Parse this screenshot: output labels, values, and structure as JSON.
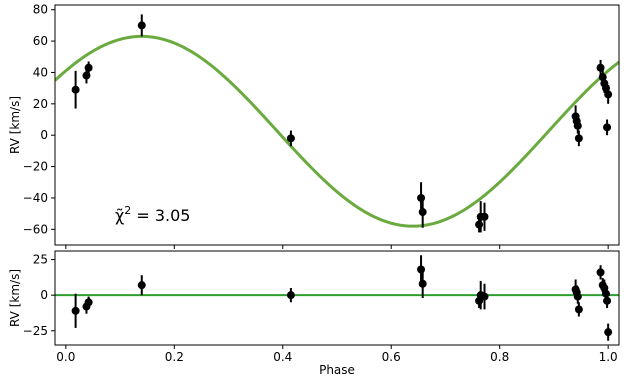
{
  "chart_data": [
    {
      "type": "scatter",
      "panel": "top",
      "ylabel": "RV [km/s]",
      "xlim": [
        -0.02,
        1.02
      ],
      "ylim": [
        -70,
        83
      ],
      "xticks": [
        0.0,
        0.2,
        0.4,
        0.6,
        0.8,
        1.0
      ],
      "yticks": [
        -60,
        -40,
        -20,
        0,
        20,
        40,
        60,
        80
      ],
      "ytick_labels": [
        "−60",
        "−40",
        "−20",
        "0",
        "20",
        "40",
        "60",
        "80"
      ],
      "model": {
        "color": "#6aaa3f",
        "offset": 2.5,
        "amplitude": 60.5,
        "peak_phase": 0.14,
        "period": 1.0
      },
      "annotation": {
        "base": "χ̃",
        "sup": "2",
        "value": " = 3.05"
      },
      "points": [
        {
          "x": 0.018,
          "y": 29,
          "err": 12
        },
        {
          "x": 0.038,
          "y": 38,
          "err": 5
        },
        {
          "x": 0.042,
          "y": 43,
          "err": 4
        },
        {
          "x": 0.14,
          "y": 70,
          "err": 7
        },
        {
          "x": 0.415,
          "y": -2,
          "err": 5
        },
        {
          "x": 0.655,
          "y": -40,
          "err": 10
        },
        {
          "x": 0.658,
          "y": -49,
          "err": 10
        },
        {
          "x": 0.762,
          "y": -57,
          "err": 5
        },
        {
          "x": 0.765,
          "y": -52,
          "err": 10
        },
        {
          "x": 0.772,
          "y": -52,
          "err": 9
        },
        {
          "x": 0.94,
          "y": 12,
          "err": 7
        },
        {
          "x": 0.942,
          "y": 9,
          "err": 5
        },
        {
          "x": 0.944,
          "y": 6,
          "err": 5
        },
        {
          "x": 0.946,
          "y": -2,
          "err": 5
        },
        {
          "x": 0.986,
          "y": 43,
          "err": 5
        },
        {
          "x": 0.99,
          "y": 37,
          "err": 5
        },
        {
          "x": 0.993,
          "y": 33,
          "err": 6
        },
        {
          "x": 0.996,
          "y": 30,
          "err": 5
        },
        {
          "x": 0.998,
          "y": 5,
          "err": 5
        },
        {
          "x": 1.0,
          "y": 26,
          "err": 6
        }
      ]
    },
    {
      "type": "scatter",
      "panel": "bottom",
      "xlabel": "Phase",
      "ylabel": "RV [km/s]",
      "xlim": [
        -0.02,
        1.02
      ],
      "ylim": [
        -35,
        31
      ],
      "xticks": [
        0.0,
        0.2,
        0.4,
        0.6,
        0.8,
        1.0
      ],
      "xtick_labels": [
        "0.0",
        "0.2",
        "0.4",
        "0.6",
        "0.8",
        "1.0"
      ],
      "yticks": [
        -25,
        0,
        25
      ],
      "ytick_labels": [
        "−25",
        "0",
        "25"
      ],
      "zero_line_color": "#2e9e2e",
      "points": [
        {
          "x": 0.018,
          "y": -11,
          "err": 12
        },
        {
          "x": 0.038,
          "y": -8,
          "err": 5
        },
        {
          "x": 0.042,
          "y": -5,
          "err": 4
        },
        {
          "x": 0.14,
          "y": 7,
          "err": 7
        },
        {
          "x": 0.415,
          "y": 0,
          "err": 5
        },
        {
          "x": 0.655,
          "y": 18,
          "err": 10
        },
        {
          "x": 0.658,
          "y": 8,
          "err": 10
        },
        {
          "x": 0.762,
          "y": -4,
          "err": 5
        },
        {
          "x": 0.765,
          "y": 0,
          "err": 10
        },
        {
          "x": 0.772,
          "y": -1,
          "err": 9
        },
        {
          "x": 0.94,
          "y": 4,
          "err": 7
        },
        {
          "x": 0.942,
          "y": 2,
          "err": 5
        },
        {
          "x": 0.944,
          "y": -1,
          "err": 5
        },
        {
          "x": 0.946,
          "y": -10,
          "err": 5
        },
        {
          "x": 0.986,
          "y": 16,
          "err": 5
        },
        {
          "x": 0.99,
          "y": 7,
          "err": 5
        },
        {
          "x": 0.993,
          "y": 5,
          "err": 6
        },
        {
          "x": 0.996,
          "y": 1,
          "err": 5
        },
        {
          "x": 0.998,
          "y": -4,
          "err": 5
        },
        {
          "x": 1.0,
          "y": -26,
          "err": 6
        }
      ]
    }
  ]
}
